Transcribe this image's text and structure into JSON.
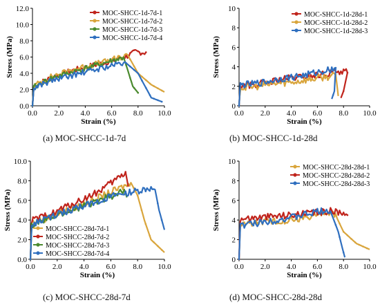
{
  "panels": [
    {
      "caption": "(a) MOC-SHCC-1d-7d",
      "chart_data": {
        "type": "line",
        "xlabel": "Strain (%)",
        "ylabel": "Stress (MPa)",
        "xlim": [
          0,
          10
        ],
        "ylim": [
          0,
          12
        ],
        "xticks": [
          "0.0",
          "2.0",
          "4.0",
          "6.0",
          "8.0",
          "10.0"
        ],
        "yticks": [
          "0.0",
          "2.0",
          "4.0",
          "6.0",
          "8.0",
          "10.0",
          "12.0"
        ],
        "legend_position": "top-right",
        "series": [
          {
            "name": "MOC-SHCC-1d-7d-1",
            "color": "#c0241c",
            "x": [
              0,
              0.1,
              0.5,
              1.5,
              3,
              4.5,
              6,
              7.2,
              7.8,
              8.6
            ],
            "y": [
              0,
              2.4,
              2.8,
              3.6,
              4.4,
              5.0,
              5.6,
              6.2,
              6.7,
              6.6
            ]
          },
          {
            "name": "MOC-SHCC-1d-7d-2",
            "color": "#d9a53c",
            "x": [
              0,
              0.1,
              0.5,
              1.5,
              3,
              4.5,
              6,
              7.2,
              8.0,
              9.0,
              10.0
            ],
            "y": [
              0,
              2.5,
              2.9,
              3.7,
              4.5,
              5.1,
              5.7,
              6.3,
              4.0,
              2.6,
              1.7
            ]
          },
          {
            "name": "MOC-SHCC-1d-7d-3",
            "color": "#4a8a2e",
            "x": [
              0,
              0.1,
              0.5,
              1.5,
              3,
              4.5,
              6,
              6.9,
              7.2,
              7.6,
              8.0
            ],
            "y": [
              0,
              2.3,
              2.7,
              3.5,
              4.2,
              4.9,
              5.6,
              6.0,
              4.5,
              2.4,
              1.6
            ]
          },
          {
            "name": "MOC-SHCC-1d-7d-4",
            "color": "#2f6fbf",
            "x": [
              0,
              0.1,
              0.5,
              1.5,
              3,
              4.5,
              6,
              7.0,
              8.0,
              9.0,
              9.8
            ],
            "y": [
              0,
              2.2,
              2.6,
              3.2,
              3.8,
              4.4,
              5.0,
              5.4,
              4.0,
              1.0,
              0.5
            ]
          }
        ]
      }
    },
    {
      "caption": "(b) MOC-SHCC-1d-28d",
      "chart_data": {
        "type": "line",
        "xlabel": "Strain (%)",
        "ylabel": "Stress (MPa)",
        "xlim": [
          0,
          10
        ],
        "ylim": [
          0,
          10
        ],
        "xticks": [
          "0.0",
          "2.0",
          "4.0",
          "6.0",
          "8.0",
          "10.0"
        ],
        "yticks": [
          "0",
          "2",
          "4",
          "6",
          "8",
          "10"
        ],
        "legend_position": "top-right",
        "series": [
          {
            "name": "MOC-SHCC-1d-28d-1",
            "color": "#c0241c",
            "x": [
              0,
              0.1,
              1,
              2,
              3,
              4,
              5,
              6,
              7,
              7.5,
              8.1,
              8.3,
              8.0,
              7.8
            ],
            "y": [
              0,
              2.1,
              2.2,
              2.4,
              2.7,
              2.9,
              3.0,
              3.2,
              3.4,
              3.6,
              3.7,
              3.4,
              1.5,
              0.8
            ]
          },
          {
            "name": "MOC-SHCC-1d-28d-2",
            "color": "#d9a53c",
            "x": [
              0,
              0.1,
              1,
              2,
              3,
              4,
              5,
              6,
              7,
              7.4,
              7.6
            ],
            "y": [
              0,
              1.9,
              2.0,
              2.2,
              2.4,
              2.5,
              2.7,
              2.9,
              3.1,
              3.2,
              1.0
            ]
          },
          {
            "name": "MOC-SHCC-1d-28d-3",
            "color": "#2f6fbf",
            "x": [
              0,
              0.1,
              1,
              2,
              3,
              4,
              5,
              6,
              7,
              7.4,
              7.3,
              7.1
            ],
            "y": [
              0,
              2.2,
              2.3,
              2.5,
              2.8,
              3.0,
              3.2,
              3.5,
              3.8,
              3.9,
              1.5,
              0.7
            ]
          }
        ]
      }
    },
    {
      "caption": "(c) MOC-SHCC-28d-7d",
      "chart_data": {
        "type": "line",
        "xlabel": "Strain (%)",
        "ylabel": "Stress (MPa)",
        "xlim": [
          0,
          10
        ],
        "ylim": [
          0,
          10
        ],
        "xticks": [
          "0.0",
          "2.0",
          "4.0",
          "6.0",
          "8.0",
          "10.0"
        ],
        "yticks": [
          "0.0",
          "2.0",
          "4.0",
          "6.0",
          "8.0",
          "10.0"
        ],
        "legend_position": "bottom-left",
        "series": [
          {
            "name": "MOC-SHCC-28d-7d-1",
            "color": "#d9a53c",
            "x": [
              0,
              0.1,
              1,
              2,
              3,
              4,
              5,
              6,
              7,
              7.5,
              8.0,
              8.5,
              9.0,
              10.0
            ],
            "y": [
              0,
              3.8,
              4.2,
              4.7,
              5.2,
              5.7,
              6.3,
              6.9,
              7.5,
              7.8,
              6.5,
              4.0,
              2.0,
              0.7
            ]
          },
          {
            "name": "MOC-SHCC-28d-7d-2",
            "color": "#c0241c",
            "x": [
              0,
              0.1,
              1,
              2,
              3,
              4,
              5,
              6,
              6.8,
              7.1,
              7.3
            ],
            "y": [
              0,
              4.0,
              4.4,
              5.0,
              5.6,
              6.2,
              6.9,
              7.8,
              8.6,
              8.9,
              7.4
            ]
          },
          {
            "name": "MOC-SHCC-28d-7d-3",
            "color": "#4a8a2e",
            "x": [
              0,
              0.1,
              1,
              2,
              3,
              4,
              5,
              6,
              7,
              7.2
            ],
            "y": [
              0,
              3.5,
              4.0,
              4.5,
              5.0,
              5.5,
              6.0,
              6.5,
              7.0,
              6.3
            ]
          },
          {
            "name": "MOC-SHCC-28d-7d-4",
            "color": "#2f6fbf",
            "x": [
              0,
              0.1,
              1,
              2,
              3,
              4,
              5,
              6,
              7,
              8,
              8.8,
              9.3,
              9.6,
              10.0
            ],
            "y": [
              0,
              3.5,
              4.1,
              4.6,
              5.1,
              5.5,
              6.0,
              6.4,
              6.8,
              7.0,
              7.3,
              7.1,
              5.0,
              3.0
            ]
          }
        ]
      }
    },
    {
      "caption": "(d) MOC-SHCC-28d-28d",
      "chart_data": {
        "type": "line",
        "xlabel": "Strain (%)",
        "ylabel": "Stress (MPa)",
        "xlim": [
          0,
          10
        ],
        "ylim": [
          0,
          10
        ],
        "xticks": [
          "0.0",
          "2.0",
          "4.0",
          "6.0",
          "8.0",
          "10.0"
        ],
        "yticks": [
          "0",
          "2",
          "4",
          "6",
          "8",
          "10"
        ],
        "legend_position": "top-right",
        "series": [
          {
            "name": "MOC-SHCC-28d-28d-1",
            "color": "#d9a53c",
            "x": [
              0,
              0.1,
              1,
              2,
              3,
              4,
              5,
              6,
              7,
              7.5,
              8.0,
              9.0,
              10.0
            ],
            "y": [
              0,
              3.6,
              3.8,
              3.9,
              4.0,
              4.1,
              4.3,
              4.6,
              4.9,
              4.2,
              2.8,
              1.6,
              1.0
            ]
          },
          {
            "name": "MOC-SHCC-28d-28d-2",
            "color": "#c0241c",
            "x": [
              0,
              0.1,
              1,
              2,
              3,
              4,
              5,
              6,
              7,
              7.5,
              8.0,
              8.3
            ],
            "y": [
              0,
              4.2,
              4.3,
              4.4,
              4.5,
              4.6,
              4.7,
              4.8,
              5.0,
              4.9,
              4.9,
              4.5
            ]
          },
          {
            "name": "MOC-SHCC-28d-28d-3",
            "color": "#2f6fbf",
            "x": [
              0,
              0.1,
              1,
              2,
              3,
              4,
              5,
              6,
              6.6,
              7.0,
              7.6,
              7.9,
              8.1
            ],
            "y": [
              0,
              3.5,
              3.7,
              3.9,
              4.1,
              4.3,
              4.6,
              4.9,
              5.1,
              4.9,
              2.8,
              1.2,
              0.2
            ]
          }
        ]
      }
    }
  ]
}
